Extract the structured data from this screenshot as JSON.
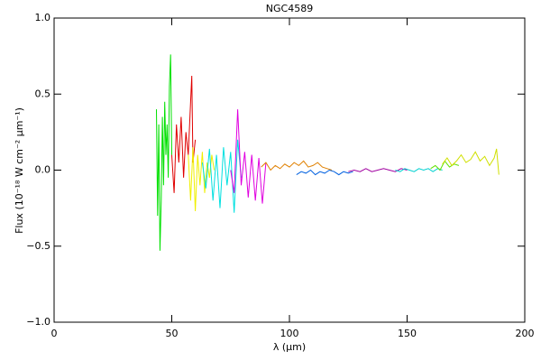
{
  "chart_data": {
    "type": "line",
    "title": "NGC4589",
    "x_label": "λ (μm)",
    "y_label": "Flux (10⁻¹⁸ W cm⁻² μm⁻¹)",
    "xlim": [
      0,
      200
    ],
    "ylim": [
      -1.0,
      1.0
    ],
    "xticks": [
      0,
      50,
      100,
      150,
      200
    ],
    "yticks": [
      {
        "value": -1.0,
        "label": "−1.0"
      },
      {
        "value": -0.5,
        "label": "−0.5"
      },
      {
        "value": 0,
        "label": "0.0"
      },
      {
        "value": 0.5,
        "label": "0.5"
      },
      {
        "value": 1.0,
        "label": "1.0"
      }
    ],
    "series": [
      {
        "color": "#00e000",
        "x": [
          43.5,
          44,
          44.5,
          45,
          45.5,
          46,
          46.5,
          47,
          47.5,
          48,
          48.5,
          49,
          49.5,
          50
        ],
        "values": [
          0.4,
          -0.3,
          0.3,
          -0.53,
          -0.2,
          0.35,
          -0.1,
          0.45,
          0.1,
          0.3,
          -0.05,
          0.55,
          0.76,
          0.1
        ]
      },
      {
        "color": "#e00000",
        "x": [
          50,
          51,
          52,
          53,
          54,
          55,
          56,
          57,
          58,
          58.5,
          59,
          60
        ],
        "values": [
          0.1,
          -0.15,
          0.3,
          0.05,
          0.35,
          -0.05,
          0.25,
          0.1,
          0.45,
          0.62,
          0.05,
          0.2
        ]
      },
      {
        "color": "#f0f000",
        "x": [
          57,
          58,
          59,
          60,
          61,
          62,
          63,
          64,
          65,
          66,
          67,
          68
        ],
        "values": [
          0.1,
          -0.2,
          0.15,
          -0.27,
          0.1,
          -0.1,
          0.12,
          -0.15,
          0.05,
          -0.05,
          0.1,
          0.0
        ]
      },
      {
        "color": "#00e0e0",
        "x": [
          63,
          64.5,
          66,
          67.5,
          69,
          70.5,
          72,
          73.5,
          75,
          76.5,
          78,
          79.5
        ],
        "values": [
          0.05,
          -0.12,
          0.14,
          -0.2,
          0.1,
          -0.25,
          0.15,
          -0.1,
          0.12,
          -0.28,
          0.2,
          -0.05
        ]
      },
      {
        "color": "#e000e0",
        "x": [
          75,
          76.5,
          78,
          79.5,
          81,
          82.5,
          84,
          85.5,
          87,
          88.5,
          90
        ],
        "values": [
          0.0,
          -0.15,
          0.4,
          -0.1,
          0.12,
          -0.18,
          0.1,
          -0.2,
          0.08,
          -0.22,
          0.05
        ]
      },
      {
        "color": "#e08000",
        "x": [
          88,
          90,
          92,
          94,
          96,
          98,
          100,
          102,
          104,
          106,
          108,
          110,
          112,
          114,
          116,
          118
        ],
        "values": [
          0.02,
          0.05,
          0.0,
          0.03,
          0.01,
          0.04,
          0.02,
          0.05,
          0.03,
          0.06,
          0.02,
          0.03,
          0.05,
          0.02,
          0.01,
          0.0
        ]
      },
      {
        "color": "#0060e0",
        "x": [
          103,
          105,
          107,
          109,
          111,
          113,
          115,
          117,
          119,
          121,
          123,
          125,
          127
        ],
        "values": [
          -0.03,
          -0.01,
          -0.02,
          0.0,
          -0.03,
          -0.01,
          -0.02,
          0.0,
          -0.01,
          -0.03,
          -0.01,
          -0.02,
          -0.01
        ]
      },
      {
        "color": "#a000a0",
        "x": [
          125,
          127.5,
          130,
          132.5,
          135,
          137.5,
          140,
          142.5,
          145,
          147.5,
          150
        ],
        "values": [
          -0.01,
          0.0,
          -0.01,
          0.01,
          -0.01,
          0.0,
          0.01,
          0.0,
          -0.01,
          0.01,
          0.0
        ]
      },
      {
        "color": "#00d0d0",
        "x": [
          145,
          147,
          149,
          151,
          153,
          155,
          157,
          159,
          161,
          163,
          165
        ],
        "values": [
          0.0,
          -0.01,
          0.01,
          0.0,
          -0.01,
          0.01,
          0.0,
          0.01,
          -0.01,
          0.01,
          0.0
        ]
      },
      {
        "color": "#60e000",
        "x": [
          160,
          162,
          164,
          166,
          168,
          170,
          172
        ],
        "values": [
          0.01,
          0.03,
          0.0,
          0.06,
          0.02,
          0.04,
          0.03
        ]
      },
      {
        "color": "#d0e000",
        "x": [
          165,
          167,
          169,
          171,
          173,
          175,
          177,
          179,
          181,
          183,
          185,
          187,
          188,
          189
        ],
        "values": [
          0.04,
          0.08,
          0.03,
          0.06,
          0.1,
          0.05,
          0.07,
          0.12,
          0.06,
          0.09,
          0.03,
          0.08,
          0.14,
          -0.03
        ]
      }
    ]
  }
}
